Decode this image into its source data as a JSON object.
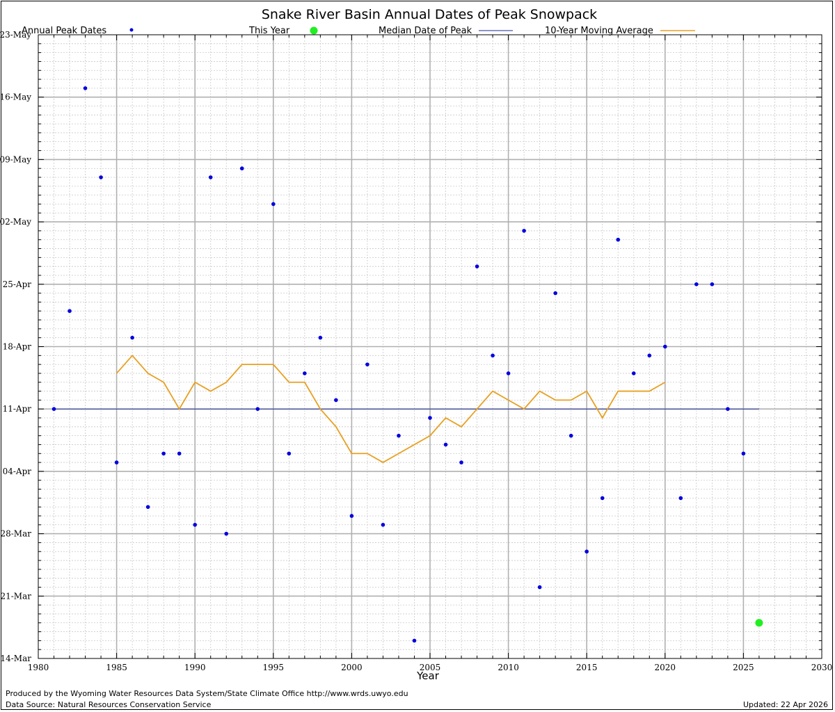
{
  "chart_data": {
    "type": "scatter",
    "title": "Snake River Basin Annual Dates of Peak Snowpack",
    "xlabel": "Year",
    "ylabel": "",
    "xlim": [
      1980,
      2030
    ],
    "ylim": [
      "14-Mar",
      "23-May"
    ],
    "x_ticks": [
      1980,
      1985,
      1990,
      1995,
      2000,
      2005,
      2010,
      2015,
      2020,
      2025,
      2030
    ],
    "y_ticks": [
      "14-Mar",
      "21-Mar",
      "28-Mar",
      "04-Apr",
      "11-Apr",
      "18-Apr",
      "25-Apr",
      "02-May",
      "09-May",
      "16-May",
      "23-May"
    ],
    "grid": true,
    "legend_position": "top",
    "legend": [
      {
        "label": "Annual Peak Dates",
        "style": "dot",
        "color": "#0000e0"
      },
      {
        "label": "This Year",
        "style": "big-dot",
        "color": "#22ee22"
      },
      {
        "label": "Median Date of Peak",
        "style": "line",
        "color": "#1a2a90"
      },
      {
        "label": "10-Year Moving Average",
        "style": "line",
        "color": "#e8a020"
      }
    ],
    "series": [
      {
        "name": "Annual Peak Dates",
        "type": "scatter",
        "color": "#0000e0",
        "points": [
          {
            "x": 1981,
            "y": "11-Apr"
          },
          {
            "x": 1982,
            "y": "22-Apr"
          },
          {
            "x": 1983,
            "y": "17-May"
          },
          {
            "x": 1984,
            "y": "07-May"
          },
          {
            "x": 1985,
            "y": "05-Apr"
          },
          {
            "x": 1986,
            "y": "19-Apr"
          },
          {
            "x": 1987,
            "y": "31-Mar"
          },
          {
            "x": 1988,
            "y": "06-Apr"
          },
          {
            "x": 1989,
            "y": "06-Apr"
          },
          {
            "x": 1990,
            "y": "29-Mar"
          },
          {
            "x": 1991,
            "y": "07-May"
          },
          {
            "x": 1992,
            "y": "28-Mar"
          },
          {
            "x": 1993,
            "y": "08-May"
          },
          {
            "x": 1994,
            "y": "11-Apr"
          },
          {
            "x": 1995,
            "y": "04-May"
          },
          {
            "x": 1996,
            "y": "06-Apr"
          },
          {
            "x": 1997,
            "y": "15-Apr"
          },
          {
            "x": 1998,
            "y": "19-Apr"
          },
          {
            "x": 1999,
            "y": "12-Apr"
          },
          {
            "x": 2000,
            "y": "30-Mar"
          },
          {
            "x": 2001,
            "y": "16-Apr"
          },
          {
            "x": 2002,
            "y": "29-Mar"
          },
          {
            "x": 2003,
            "y": "08-Apr"
          },
          {
            "x": 2004,
            "y": "16-Mar"
          },
          {
            "x": 2005,
            "y": "10-Apr"
          },
          {
            "x": 2006,
            "y": "07-Apr"
          },
          {
            "x": 2007,
            "y": "05-Apr"
          },
          {
            "x": 2008,
            "y": "27-Apr"
          },
          {
            "x": 2009,
            "y": "17-Apr"
          },
          {
            "x": 2010,
            "y": "15-Apr"
          },
          {
            "x": 2011,
            "y": "01-May"
          },
          {
            "x": 2012,
            "y": "22-Mar"
          },
          {
            "x": 2013,
            "y": "24-Apr"
          },
          {
            "x": 2014,
            "y": "08-Apr"
          },
          {
            "x": 2015,
            "y": "26-Mar"
          },
          {
            "x": 2016,
            "y": "01-Apr"
          },
          {
            "x": 2017,
            "y": "30-Apr"
          },
          {
            "x": 2018,
            "y": "15-Apr"
          },
          {
            "x": 2019,
            "y": "17-Apr"
          },
          {
            "x": 2020,
            "y": "18-Apr"
          },
          {
            "x": 2021,
            "y": "01-Apr"
          },
          {
            "x": 2022,
            "y": "25-Apr"
          },
          {
            "x": 2023,
            "y": "25-Apr"
          },
          {
            "x": 2024,
            "y": "11-Apr"
          },
          {
            "x": 2025,
            "y": "06-Apr"
          }
        ]
      },
      {
        "name": "This Year",
        "type": "scatter",
        "color": "#22ee22",
        "points": [
          {
            "x": 2026,
            "y": "18-Mar"
          }
        ]
      },
      {
        "name": "Median Date of Peak",
        "type": "line",
        "color": "#1a2a90",
        "points": [
          {
            "x": 1981,
            "y": "11-Apr"
          },
          {
            "x": 2026,
            "y": "11-Apr"
          }
        ]
      },
      {
        "name": "10-Year Moving Average",
        "type": "line",
        "color": "#e8a020",
        "points": [
          {
            "x": 1985,
            "y": "15-Apr"
          },
          {
            "x": 1986,
            "y": "17-Apr"
          },
          {
            "x": 1987,
            "y": "15-Apr"
          },
          {
            "x": 1988,
            "y": "14-Apr"
          },
          {
            "x": 1989,
            "y": "11-Apr"
          },
          {
            "x": 1990,
            "y": "14-Apr"
          },
          {
            "x": 1991,
            "y": "13-Apr"
          },
          {
            "x": 1992,
            "y": "14-Apr"
          },
          {
            "x": 1993,
            "y": "16-Apr"
          },
          {
            "x": 1994,
            "y": "16-Apr"
          },
          {
            "x": 1995,
            "y": "16-Apr"
          },
          {
            "x": 1996,
            "y": "14-Apr"
          },
          {
            "x": 1997,
            "y": "14-Apr"
          },
          {
            "x": 1998,
            "y": "11-Apr"
          },
          {
            "x": 1999,
            "y": "09-Apr"
          },
          {
            "x": 2000,
            "y": "06-Apr"
          },
          {
            "x": 2001,
            "y": "06-Apr"
          },
          {
            "x": 2002,
            "y": "05-Apr"
          },
          {
            "x": 2003,
            "y": "06-Apr"
          },
          {
            "x": 2004,
            "y": "07-Apr"
          },
          {
            "x": 2005,
            "y": "08-Apr"
          },
          {
            "x": 2006,
            "y": "10-Apr"
          },
          {
            "x": 2007,
            "y": "09-Apr"
          },
          {
            "x": 2008,
            "y": "11-Apr"
          },
          {
            "x": 2009,
            "y": "13-Apr"
          },
          {
            "x": 2010,
            "y": "12-Apr"
          },
          {
            "x": 2011,
            "y": "11-Apr"
          },
          {
            "x": 2012,
            "y": "13-Apr"
          },
          {
            "x": 2013,
            "y": "12-Apr"
          },
          {
            "x": 2014,
            "y": "12-Apr"
          },
          {
            "x": 2015,
            "y": "13-Apr"
          },
          {
            "x": 2016,
            "y": "10-Apr"
          },
          {
            "x": 2017,
            "y": "13-Apr"
          },
          {
            "x": 2018,
            "y": "13-Apr"
          },
          {
            "x": 2019,
            "y": "13-Apr"
          },
          {
            "x": 2020,
            "y": "14-Apr"
          }
        ]
      }
    ]
  },
  "footer": {
    "produced_by": "Produced by the Wyoming Water Resources Data System/State Climate Office http://www.wrds.uwyo.edu",
    "data_source": "Data Source: Natural Resources Conservation Service",
    "updated": "Updated: 22 Apr 2026"
  }
}
